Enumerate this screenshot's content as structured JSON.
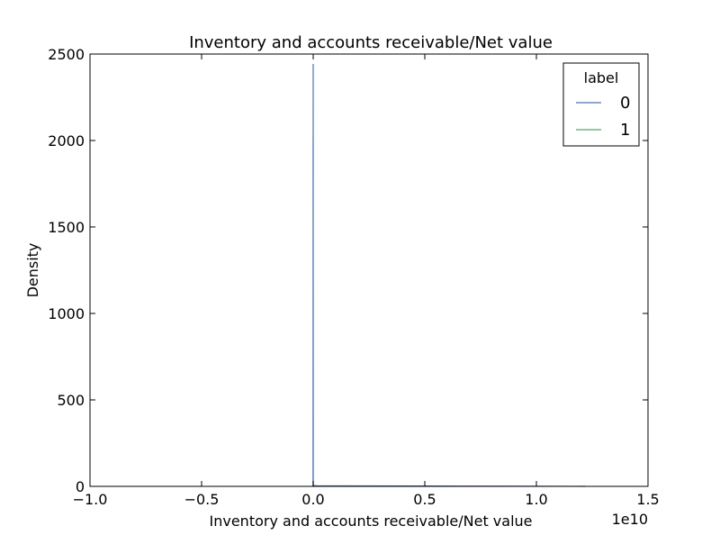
{
  "chart_data": {
    "type": "line",
    "title": "Inventory and accounts receivable/Net value",
    "xlabel": "Inventory and accounts receivable/Net value",
    "ylabel": "Density",
    "x_offset_label": "1e10",
    "xlim": [
      -1.0,
      1.5
    ],
    "ylim": [
      0,
      2500
    ],
    "x_ticks": [
      -1.0,
      -0.5,
      0.0,
      0.5,
      1.0,
      1.5
    ],
    "x_tick_labels": [
      "−1.0",
      "−0.5",
      "0.0",
      "0.5",
      "1.0",
      "1.5"
    ],
    "y_ticks": [
      0,
      500,
      1000,
      1500,
      2000,
      2500
    ],
    "y_tick_labels": [
      "0",
      "500",
      "1000",
      "1500",
      "2000",
      "2500"
    ],
    "grid": false,
    "legend": {
      "title": "label",
      "position": "top-right"
    },
    "series": [
      {
        "name": "0",
        "color": "#4c72b0",
        "x": [
          -0.0015,
          -0.0006,
          -0.0003,
          -0.0001,
          0.0,
          0.0001,
          0.0003,
          0.0006,
          0.0015,
          0.02,
          0.5,
          1.0,
          1.22
        ],
        "y": [
          0,
          0,
          2020,
          1150,
          2440,
          1400,
          30,
          0,
          5,
          3,
          2,
          1,
          0
        ]
      },
      {
        "name": "1",
        "color": "#55a868",
        "x": [
          -0.004,
          -0.001,
          0.0,
          0.001,
          0.004
        ],
        "y": [
          0,
          1,
          4,
          1,
          0
        ]
      }
    ]
  }
}
